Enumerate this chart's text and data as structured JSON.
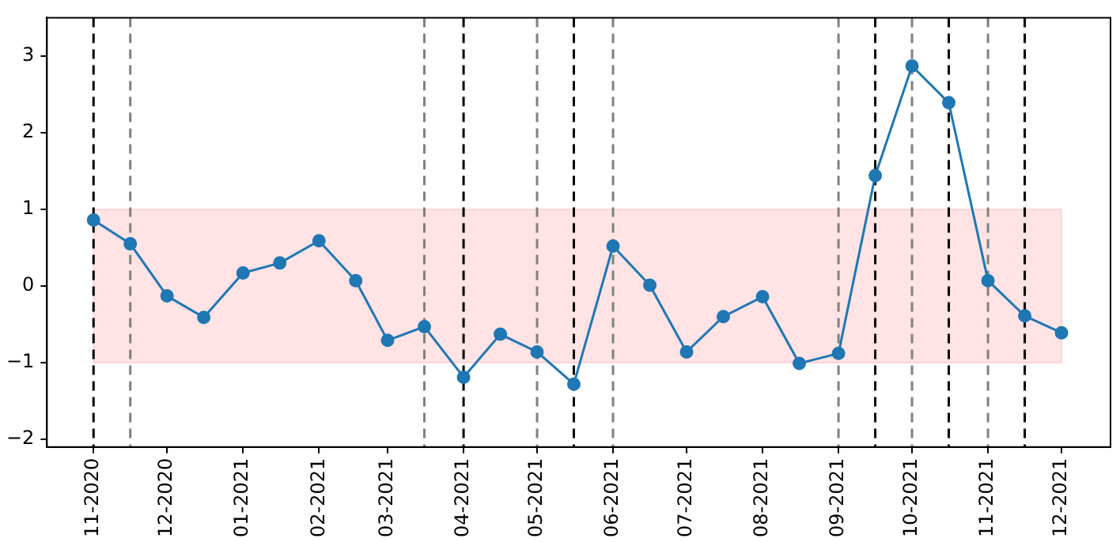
{
  "chart_data": {
    "type": "line",
    "x": [
      "2020-11-01",
      "2020-11-16",
      "2020-12-01",
      "2020-12-16",
      "2021-01-01",
      "2021-01-16",
      "2021-02-01",
      "2021-02-16",
      "2021-03-01",
      "2021-03-16",
      "2021-04-01",
      "2021-04-16",
      "2021-05-01",
      "2021-05-16",
      "2021-06-01",
      "2021-06-16",
      "2021-07-01",
      "2021-07-16",
      "2021-08-01",
      "2021-08-16",
      "2021-09-01",
      "2021-09-16",
      "2021-10-01",
      "2021-10-16",
      "2021-11-01",
      "2021-11-16",
      "2021-12-01"
    ],
    "series": [
      {
        "color": "#1f77b4",
        "values": [
          0.86,
          0.55,
          -0.13,
          -0.41,
          0.17,
          0.3,
          0.59,
          0.07,
          -0.71,
          -0.53,
          -1.19,
          -0.63,
          -0.86,
          -1.28,
          0.52,
          0.01,
          -0.86,
          -0.4,
          -0.14,
          -1.01,
          -0.88,
          1.44,
          2.87,
          2.39,
          0.07,
          -0.39,
          -0.61
        ]
      }
    ],
    "marker": "circle",
    "line_style": "solid",
    "grid": false,
    "legend": false,
    "xlim": [
      "2020-10-13",
      "2021-12-21"
    ],
    "xticks": [
      {
        "value": "2020-11-01",
        "label": "11-2020"
      },
      {
        "value": "2020-12-01",
        "label": "12-2020"
      },
      {
        "value": "2021-01-01",
        "label": "01-2021"
      },
      {
        "value": "2021-02-01",
        "label": "02-2021"
      },
      {
        "value": "2021-03-01",
        "label": "03-2021"
      },
      {
        "value": "2021-04-01",
        "label": "04-2021"
      },
      {
        "value": "2021-05-01",
        "label": "05-2021"
      },
      {
        "value": "2021-06-01",
        "label": "06-2021"
      },
      {
        "value": "2021-07-01",
        "label": "07-2021"
      },
      {
        "value": "2021-08-01",
        "label": "08-2021"
      },
      {
        "value": "2021-09-01",
        "label": "09-2021"
      },
      {
        "value": "2021-10-01",
        "label": "10-2021"
      },
      {
        "value": "2021-11-01",
        "label": "11-2021"
      },
      {
        "value": "2021-12-01",
        "label": "12-2021"
      }
    ],
    "ylim": [
      -2.1,
      3.5
    ],
    "yticks": [
      -2,
      -1,
      0,
      1,
      2,
      3
    ],
    "bands": [
      {
        "axis": "y",
        "from": -1,
        "to": 1,
        "color": "#ffe3e5"
      }
    ],
    "ref_lines": [
      {
        "axis": "x",
        "value": "2020-11-01",
        "color": "#000000",
        "line_style": "dashed"
      },
      {
        "axis": "x",
        "value": "2020-11-16",
        "color": "#808080",
        "line_style": "dashed"
      },
      {
        "axis": "x",
        "value": "2021-03-16",
        "color": "#808080",
        "line_style": "dashed"
      },
      {
        "axis": "x",
        "value": "2021-04-01",
        "color": "#000000",
        "line_style": "dashed"
      },
      {
        "axis": "x",
        "value": "2021-05-01",
        "color": "#808080",
        "line_style": "dashed"
      },
      {
        "axis": "x",
        "value": "2021-05-16",
        "color": "#000000",
        "line_style": "dashed"
      },
      {
        "axis": "x",
        "value": "2021-06-01",
        "color": "#808080",
        "line_style": "dashed"
      },
      {
        "axis": "x",
        "value": "2021-09-01",
        "color": "#808080",
        "line_style": "dashed"
      },
      {
        "axis": "x",
        "value": "2021-09-16",
        "color": "#000000",
        "line_style": "dashed"
      },
      {
        "axis": "x",
        "value": "2021-10-01",
        "color": "#808080",
        "line_style": "dashed"
      },
      {
        "axis": "x",
        "value": "2021-10-16",
        "color": "#000000",
        "line_style": "dashed"
      },
      {
        "axis": "x",
        "value": "2021-11-01",
        "color": "#808080",
        "line_style": "dashed"
      },
      {
        "axis": "x",
        "value": "2021-11-16",
        "color": "#000000",
        "line_style": "dashed"
      }
    ]
  }
}
